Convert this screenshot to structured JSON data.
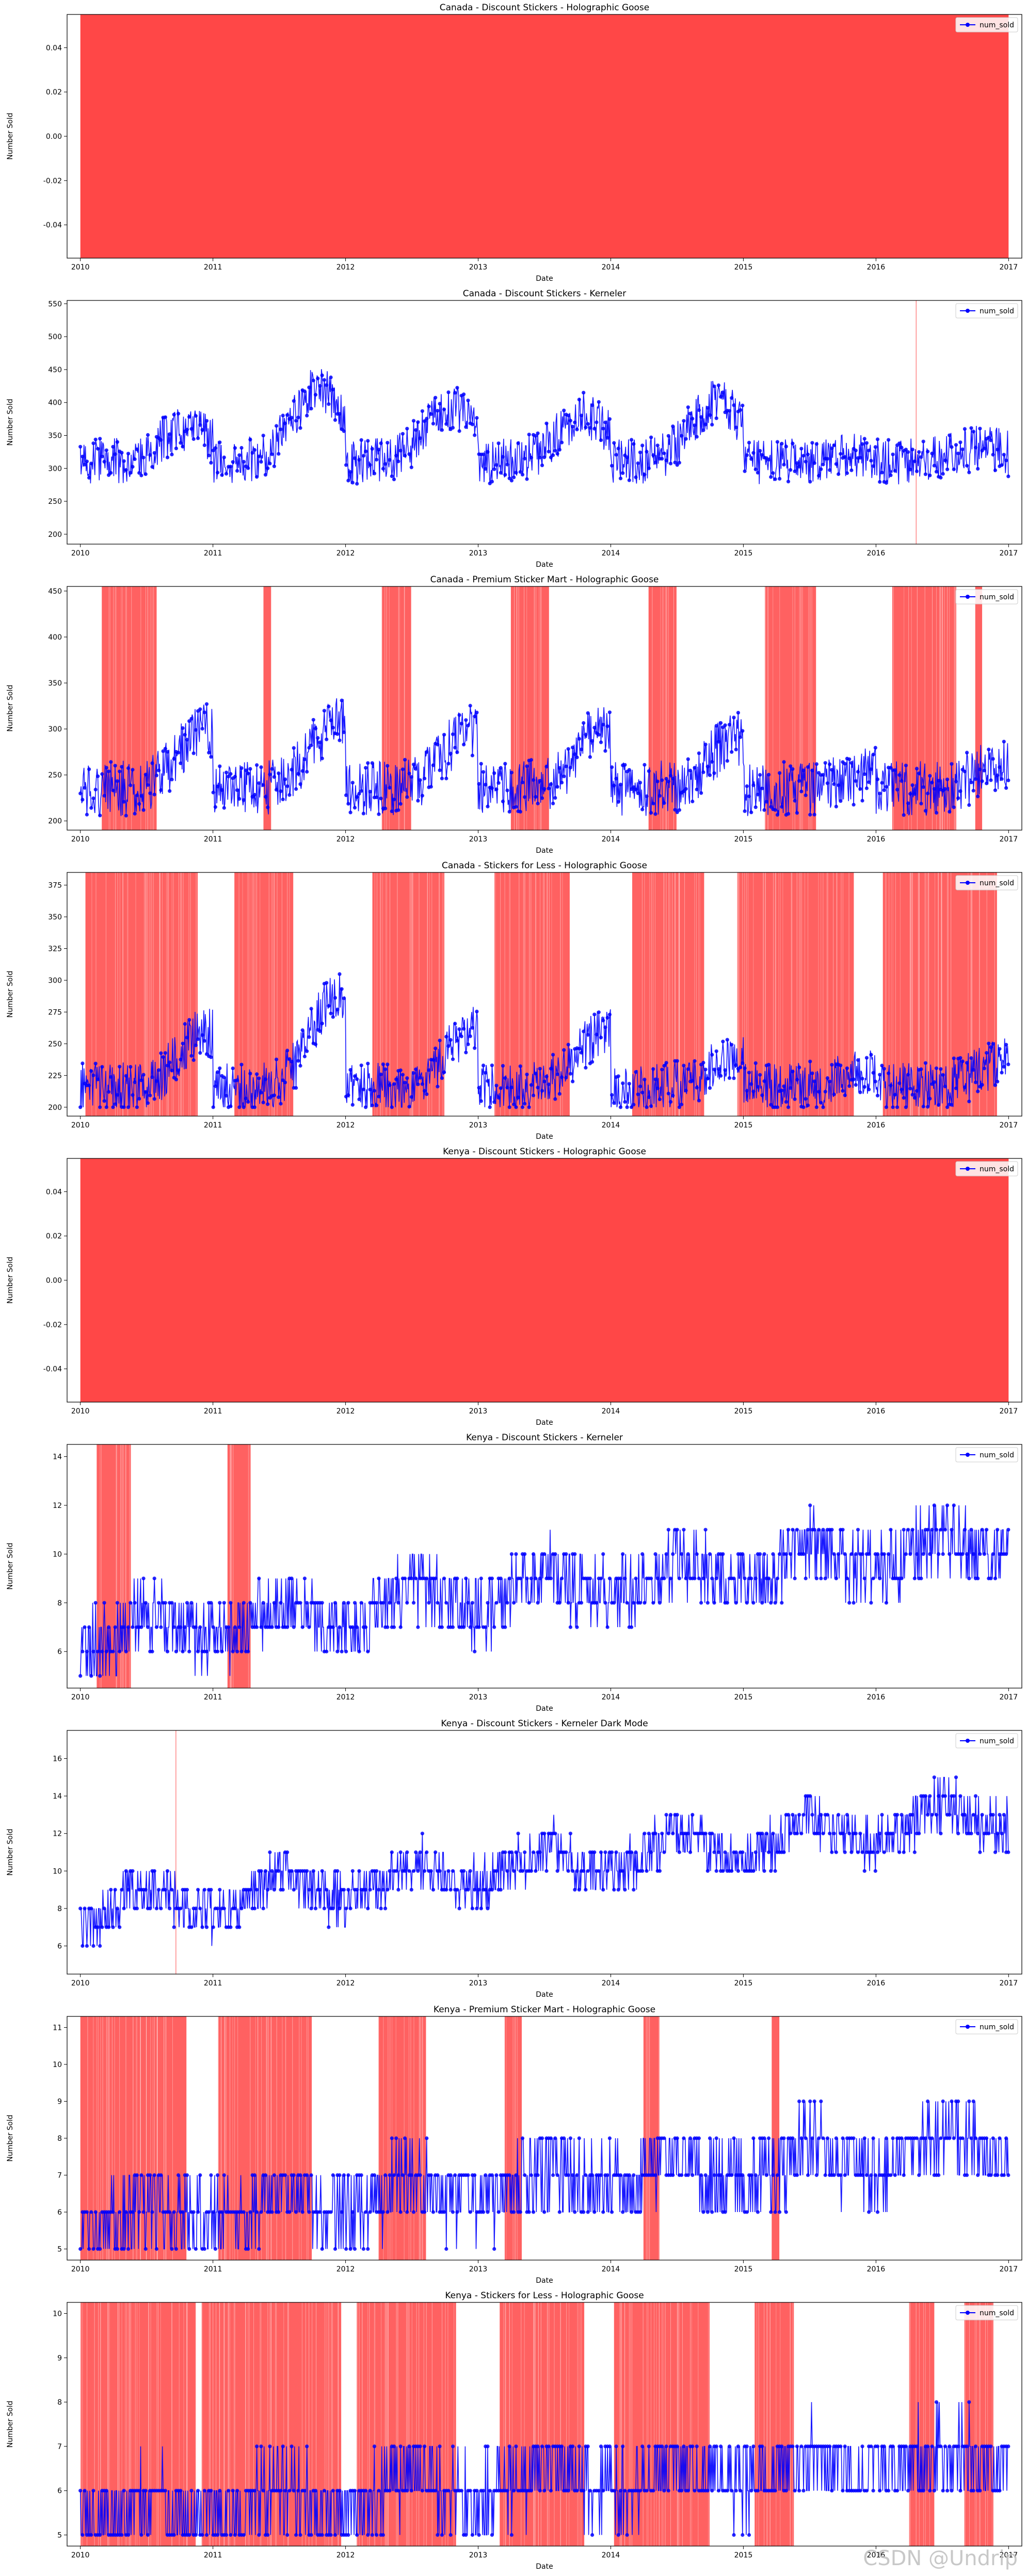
{
  "watermark": "CSDN @Undrip",
  "colors": {
    "line": "#0000ff",
    "anomaly": "#ff0000",
    "axis": "#000000",
    "legend_border": "#cccccc"
  },
  "shared": {
    "xlabel": "Date",
    "ylabel": "Number Sold",
    "legend_label": "num_sold",
    "x_ticks": [
      "2010",
      "2011",
      "2012",
      "2013",
      "2014",
      "2015",
      "2016",
      "2017"
    ],
    "x_range": [
      "2010-01-01",
      "2017-01-01"
    ]
  },
  "chart_data": [
    {
      "type": "line",
      "title": "Canada - Discount Stickers - Holographic Goose",
      "ylim": [
        -0.055,
        0.055
      ],
      "y_ticks": [
        "-0.04",
        "-0.02",
        "0.00",
        "0.02",
        "0.04"
      ],
      "y_tick_values": [
        -0.04,
        -0.02,
        0.0,
        0.02,
        0.04
      ],
      "series": [
        {
          "name": "num_sold",
          "values_note": "",
          "empty": true
        }
      ],
      "full_anomaly": true,
      "anomaly_spans": [],
      "trend": {
        "base": 0,
        "amp": 0,
        "growth": 0,
        "noise": 0,
        "min": 0
      },
      "legend": "top-right"
    },
    {
      "type": "line",
      "title": "Canada - Discount Stickers - Kerneler",
      "ylim": [
        185,
        555
      ],
      "y_ticks": [
        "200",
        "250",
        "300",
        "350",
        "400",
        "450",
        "500",
        "550"
      ],
      "y_tick_values": [
        200,
        250,
        300,
        350,
        400,
        450,
        500,
        550
      ],
      "full_anomaly": false,
      "anomaly_spans": [
        [
          "2016-04-20",
          "2016-04-22"
        ]
      ],
      "trend": {
        "base": 310,
        "amp": 70,
        "growth": 0,
        "noise": 35,
        "min": 205,
        "peaks": [
          [
            2010.8,
            360
          ],
          [
            2011.8,
            420
          ],
          [
            2012.8,
            390
          ],
          [
            2013.8,
            380
          ],
          [
            2014.8,
            400
          ],
          [
            2015.8,
            320
          ],
          [
            2016.8,
            330
          ]
        ]
      },
      "legend": "top-right"
    },
    {
      "type": "line",
      "title": "Canada - Premium Sticker Mart - Holographic Goose",
      "ylim": [
        190,
        455
      ],
      "y_ticks": [
        "200",
        "250",
        "300",
        "350",
        "400",
        "450"
      ],
      "y_tick_values": [
        200,
        250,
        300,
        350,
        400,
        450
      ],
      "full_anomaly": false,
      "anomaly_spans": [
        [
          "2010-03-01",
          "2010-07-30"
        ],
        [
          "2011-05-20",
          "2011-06-10"
        ],
        [
          "2012-04-10",
          "2012-06-30"
        ],
        [
          "2013-04-01",
          "2013-07-15"
        ],
        [
          "2014-04-15",
          "2014-07-01"
        ],
        [
          "2015-03-01",
          "2015-07-20"
        ],
        [
          "2016-02-15",
          "2016-08-10"
        ],
        [
          "2016-10-01",
          "2016-10-20"
        ]
      ],
      "trend": {
        "base": 235,
        "amp": 45,
        "growth": 0,
        "noise": 30,
        "min": 200,
        "peaks": [
          [
            2010.95,
            300
          ],
          [
            2011.95,
            310
          ],
          [
            2012.95,
            300
          ],
          [
            2013.95,
            300
          ],
          [
            2014.95,
            290
          ],
          [
            2015.95,
            250
          ],
          [
            2016.95,
            260
          ]
        ]
      },
      "legend": "top-right"
    },
    {
      "type": "line",
      "title": "Canada - Stickers for Less - Holographic Goose",
      "ylim": [
        193,
        385
      ],
      "y_ticks": [
        "200",
        "225",
        "250",
        "275",
        "300",
        "325",
        "350",
        "375"
      ],
      "y_tick_values": [
        200,
        225,
        250,
        275,
        300,
        325,
        350,
        375
      ],
      "full_anomaly": false,
      "anomaly_spans": [
        [
          "2010-01-15",
          "2010-11-20"
        ],
        [
          "2011-03-01",
          "2011-08-10"
        ],
        [
          "2012-03-15",
          "2012-09-30"
        ],
        [
          "2013-02-15",
          "2013-09-10"
        ],
        [
          "2014-03-01",
          "2014-09-15"
        ],
        [
          "2014-12-15",
          "2015-11-01"
        ],
        [
          "2016-01-20",
          "2016-11-30"
        ]
      ],
      "trend": {
        "base": 215,
        "amp": 30,
        "growth": 0,
        "noise": 20,
        "min": 200,
        "peaks": [
          [
            2010.95,
            260
          ],
          [
            2011.95,
            290
          ],
          [
            2012.95,
            260
          ],
          [
            2013.95,
            260
          ],
          [
            2014.95,
            240
          ],
          [
            2015.95,
            230
          ],
          [
            2016.95,
            235
          ]
        ]
      },
      "legend": "top-right"
    },
    {
      "type": "line",
      "title": "Kenya - Discount Stickers - Holographic Goose",
      "ylim": [
        -0.055,
        0.055
      ],
      "y_ticks": [
        "-0.04",
        "-0.02",
        "0.00",
        "0.02",
        "0.04"
      ],
      "y_tick_values": [
        -0.04,
        -0.02,
        0.0,
        0.02,
        0.04
      ],
      "full_anomaly": true,
      "anomaly_spans": [],
      "trend": {
        "base": 0,
        "amp": 0,
        "growth": 0,
        "noise": 0,
        "min": 0
      },
      "legend": "top-right"
    },
    {
      "type": "line",
      "title": "Kenya - Discount Stickers - Kerneler",
      "ylim": [
        4.5,
        14.5
      ],
      "y_ticks": [
        "6",
        "8",
        "10",
        "12",
        "14"
      ],
      "y_tick_values": [
        6,
        8,
        10,
        12,
        14
      ],
      "full_anomaly": false,
      "anomaly_spans": [
        [
          "2010-02-15",
          "2010-05-20"
        ],
        [
          "2011-02-10",
          "2011-04-15"
        ]
      ],
      "trend": {
        "base": 6,
        "amp": 1.3,
        "growth": 0.55,
        "noise": 1.4,
        "min": 5,
        "integer": true
      },
      "legend": "top-right"
    },
    {
      "type": "line",
      "title": "Kenya - Discount Stickers - Kerneler Dark Mode",
      "ylim": [
        4.5,
        17.5
      ],
      "y_ticks": [
        "6",
        "8",
        "10",
        "12",
        "14",
        "16"
      ],
      "y_tick_values": [
        6,
        8,
        10,
        12,
        14,
        16
      ],
      "full_anomaly": false,
      "anomaly_spans": [
        [
          "2010-09-20",
          "2010-09-22"
        ]
      ],
      "trend": {
        "base": 7,
        "amp": 1.7,
        "growth": 0.75,
        "noise": 1.3,
        "min": 5,
        "integer": true
      },
      "legend": "top-right"
    },
    {
      "type": "line",
      "title": "Kenya - Premium Sticker Mart - Holographic Goose",
      "ylim": [
        4.7,
        11.3
      ],
      "y_ticks": [
        "5",
        "6",
        "7",
        "8",
        "9",
        "10",
        "11"
      ],
      "y_tick_values": [
        5,
        6,
        7,
        8,
        9,
        10,
        11
      ],
      "full_anomaly": false,
      "anomaly_spans": [
        [
          "2010-01-01",
          "2010-10-20"
        ],
        [
          "2011-01-15",
          "2011-09-30"
        ],
        [
          "2012-04-01",
          "2012-08-10"
        ],
        [
          "2013-03-15",
          "2013-05-01"
        ],
        [
          "2014-04-01",
          "2014-05-15"
        ],
        [
          "2015-03-20",
          "2015-04-10"
        ]
      ],
      "trend": {
        "base": 5.4,
        "amp": 0.7,
        "growth": 0.3,
        "noise": 1.0,
        "min": 5,
        "integer": true
      },
      "legend": "top-right"
    },
    {
      "type": "line",
      "title": "Kenya - Stickers for Less - Holographic Goose",
      "ylim": [
        4.75,
        10.25
      ],
      "y_ticks": [
        "5",
        "6",
        "7",
        "8",
        "9",
        "10"
      ],
      "y_tick_values": [
        5,
        6,
        7,
        8,
        9,
        10
      ],
      "full_anomaly": false,
      "anomaly_spans": [
        [
          "2010-01-01",
          "2010-11-15"
        ],
        [
          "2010-12-01",
          "2011-12-20"
        ],
        [
          "2012-02-01",
          "2012-11-01"
        ],
        [
          "2013-03-01",
          "2013-10-20"
        ],
        [
          "2014-01-10",
          "2014-09-30"
        ],
        [
          "2015-02-01",
          "2015-05-20"
        ],
        [
          "2016-04-01",
          "2016-06-10"
        ],
        [
          "2016-09-01",
          "2016-11-20"
        ]
      ],
      "trend": {
        "base": 5.2,
        "amp": 0.5,
        "growth": 0.2,
        "noise": 0.8,
        "min": 5,
        "integer": true
      },
      "legend": "top-right"
    }
  ]
}
